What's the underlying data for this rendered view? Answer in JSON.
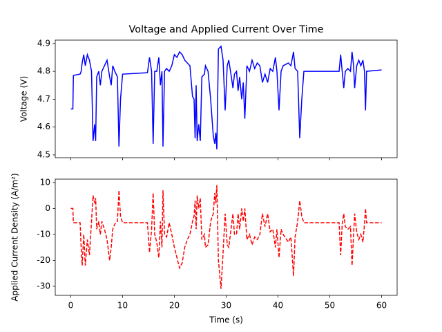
{
  "chart_data": [
    {
      "type": "line",
      "title": "Voltage and Applied Current Over Time",
      "ylabel": "Voltage (V)",
      "ylabel_color": "blue",
      "color": "blue",
      "line_style": "solid",
      "show_xtick_labels": false,
      "x": [
        0,
        0.4,
        0.5,
        1.8,
        2.0,
        2.2,
        2.5,
        2.8,
        3.2,
        3.6,
        4.0,
        4.3,
        4.6,
        4.8,
        5.0,
        5.4,
        5.7,
        6.0,
        6.5,
        7.0,
        7.5,
        7.8,
        8.1,
        8.5,
        9.0,
        9.3,
        9.6,
        10.0,
        14.8,
        15.2,
        15.6,
        15.9,
        16.2,
        16.6,
        17.0,
        17.3,
        17.6,
        17.8,
        18.1,
        18.5,
        19.0,
        19.5,
        20.0,
        20.5,
        21.0,
        21.5,
        22.0,
        22.5,
        23.0,
        23.5,
        23.8,
        24.0,
        24.2,
        24.4,
        24.7,
        25.0,
        25.3,
        25.8,
        26.0,
        26.5,
        27.0,
        27.5,
        27.8,
        28.0,
        28.2,
        28.5,
        29.0,
        29.4,
        29.8,
        30.2,
        30.5,
        31.0,
        31.3,
        31.6,
        32.0,
        32.3,
        32.6,
        33.0,
        33.3,
        33.6,
        34.0,
        34.5,
        35.0,
        35.5,
        36.0,
        36.5,
        37.0,
        37.5,
        38.0,
        38.5,
        39.0,
        39.5,
        39.8,
        40.2,
        40.6,
        41.0,
        42.0,
        42.5,
        43.0,
        43.3,
        43.8,
        44.2,
        44.6,
        45.0,
        51.8,
        52.1,
        52.4,
        52.7,
        53.0,
        53.5,
        54.0,
        54.3,
        54.6,
        54.8,
        55.2,
        55.6,
        56.0,
        56.4,
        56.7,
        56.9,
        57.1,
        60
      ],
      "values": [
        4.665,
        4.665,
        4.785,
        4.79,
        4.8,
        4.83,
        4.86,
        4.82,
        4.86,
        4.84,
        4.8,
        4.55,
        4.61,
        4.55,
        4.78,
        4.8,
        4.75,
        4.8,
        4.82,
        4.84,
        4.78,
        4.75,
        4.82,
        4.8,
        4.78,
        4.53,
        4.7,
        4.79,
        4.795,
        4.85,
        4.8,
        4.54,
        4.8,
        4.8,
        4.85,
        4.75,
        4.8,
        4.53,
        4.8,
        4.81,
        4.8,
        4.82,
        4.86,
        4.85,
        4.87,
        4.86,
        4.84,
        4.83,
        4.82,
        4.71,
        4.7,
        4.56,
        4.75,
        4.55,
        4.61,
        4.55,
        4.78,
        4.79,
        4.82,
        4.8,
        4.7,
        4.57,
        4.54,
        4.58,
        4.52,
        4.88,
        4.89,
        4.84,
        4.66,
        4.82,
        4.84,
        4.78,
        4.74,
        4.79,
        4.8,
        4.73,
        4.78,
        4.7,
        4.76,
        4.63,
        4.82,
        4.8,
        4.84,
        4.81,
        4.83,
        4.82,
        4.76,
        4.79,
        4.76,
        4.81,
        4.8,
        4.85,
        4.8,
        4.66,
        4.8,
        4.82,
        4.83,
        4.82,
        4.87,
        4.81,
        4.8,
        4.56,
        4.7,
        4.8,
        4.8,
        4.86,
        4.8,
        4.74,
        4.8,
        4.81,
        4.8,
        4.87,
        4.82,
        4.74,
        4.82,
        4.84,
        4.82,
        4.84,
        4.8,
        4.66,
        4.8,
        4.805
      ],
      "xlim": [
        -3,
        63
      ],
      "ylim": [
        4.49,
        4.912
      ],
      "xticks": [
        0,
        10,
        20,
        30,
        40,
        50,
        60
      ],
      "yticks": [
        4.5,
        4.6,
        4.7,
        4.8,
        4.9
      ]
    },
    {
      "type": "line",
      "xlabel": "Time (s)",
      "ylabel": "Applied Current Density (A/m²)",
      "ylabel_color": "red",
      "color": "red",
      "line_style": "dashed",
      "show_xtick_labels": true,
      "x": [
        0,
        0.4,
        0.5,
        1.8,
        2.0,
        2.2,
        2.5,
        2.8,
        3.2,
        3.6,
        4.0,
        4.3,
        4.6,
        4.8,
        5.0,
        5.4,
        5.7,
        6.0,
        6.5,
        7.0,
        7.5,
        7.8,
        8.1,
        8.5,
        9.0,
        9.3,
        9.6,
        10.0,
        14.8,
        15.2,
        15.6,
        15.9,
        16.2,
        16.6,
        17.0,
        17.3,
        17.6,
        17.8,
        18.1,
        18.5,
        19.0,
        19.5,
        20.0,
        20.5,
        21.0,
        21.5,
        22.0,
        22.5,
        23.0,
        23.5,
        23.8,
        24.0,
        24.2,
        24.4,
        24.7,
        25.0,
        25.3,
        25.8,
        26.0,
        26.5,
        27.0,
        27.5,
        27.8,
        28.0,
        28.2,
        28.5,
        29.0,
        29.4,
        29.8,
        30.2,
        30.5,
        31.0,
        31.3,
        31.6,
        32.0,
        32.3,
        32.6,
        33.0,
        33.3,
        33.6,
        34.0,
        34.5,
        35.0,
        35.5,
        36.0,
        36.5,
        37.0,
        37.5,
        38.0,
        38.5,
        39.0,
        39.5,
        39.8,
        40.2,
        40.6,
        41.0,
        42.0,
        42.5,
        43.0,
        43.3,
        43.8,
        44.2,
        44.6,
        45.0,
        51.8,
        52.1,
        52.4,
        52.7,
        53.0,
        53.5,
        54.0,
        54.3,
        54.6,
        54.8,
        55.2,
        55.6,
        56.0,
        56.4,
        56.7,
        56.9,
        57.1,
        60
      ],
      "values": [
        0,
        0,
        -5.5,
        -5.5,
        -15,
        -22,
        -10,
        -22,
        -12,
        -18,
        -5,
        5,
        2,
        4,
        -8,
        -5,
        -10,
        -5,
        -8,
        -12,
        -20,
        -15,
        -8,
        -6,
        -5,
        7,
        -3,
        -5.5,
        -5.5,
        -17,
        -8,
        6,
        -10,
        -13,
        -19,
        -5,
        -15,
        7,
        -10,
        -11,
        -5.5,
        -10,
        -15,
        -19,
        -23,
        -21,
        -15,
        -12,
        -10,
        -5,
        -3,
        3,
        -8,
        5,
        0,
        4,
        -12,
        -10,
        -15,
        -14,
        -5,
        -2,
        6,
        2,
        9,
        -20,
        -31,
        -17,
        -2,
        -14,
        -15,
        -7,
        -2,
        -10,
        -10,
        -2,
        -8,
        0,
        -5,
        0,
        -12,
        -10,
        -14,
        -11,
        -12,
        -10,
        -2,
        -7,
        -2,
        -9,
        -8,
        -15,
        -8,
        -19,
        -8,
        -10,
        -13,
        -11,
        -26,
        -11,
        -5,
        3,
        -3,
        -5.5,
        -5.5,
        -18,
        -6,
        -2,
        -7,
        -8,
        -7,
        -22,
        -10,
        -2,
        -9,
        -12,
        -10,
        -13,
        -6,
        0,
        -5.5,
        -5.5
      ],
      "xlim": [
        -3,
        63
      ],
      "ylim": [
        -33.5,
        11.3
      ],
      "xticks": [
        0,
        10,
        20,
        30,
        40,
        50,
        60
      ],
      "yticks": [
        -30,
        -20,
        -10,
        0,
        10
      ]
    }
  ]
}
